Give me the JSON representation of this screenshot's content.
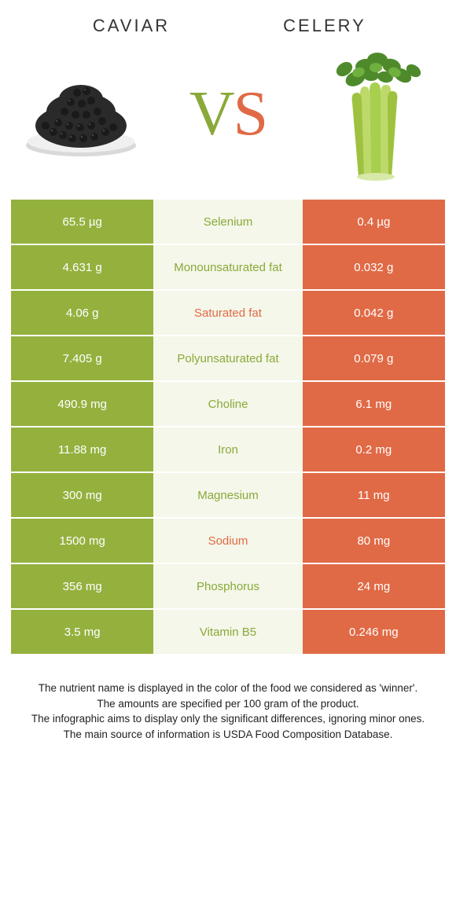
{
  "colors": {
    "left_bg": "#94b13e",
    "right_bg": "#e06a46",
    "mid_bg": "#f4f7e9",
    "left_text": "#8aa93a",
    "right_text": "#e06a46"
  },
  "foods": {
    "left_title": "CAVIAR",
    "right_title": "CELERY"
  },
  "vs": {
    "v": "V",
    "s": "S"
  },
  "rows": [
    {
      "left": "65.5 µg",
      "name": "Selenium",
      "right": "0.4 µg",
      "winner": "left"
    },
    {
      "left": "4.631 g",
      "name": "Monounsaturated fat",
      "right": "0.032 g",
      "winner": "left"
    },
    {
      "left": "4.06 g",
      "name": "Saturated fat",
      "right": "0.042 g",
      "winner": "right"
    },
    {
      "left": "7.405 g",
      "name": "Polyunsaturated fat",
      "right": "0.079 g",
      "winner": "left"
    },
    {
      "left": "490.9 mg",
      "name": "Choline",
      "right": "6.1 mg",
      "winner": "left"
    },
    {
      "left": "11.88 mg",
      "name": "Iron",
      "right": "0.2 mg",
      "winner": "left"
    },
    {
      "left": "300 mg",
      "name": "Magnesium",
      "right": "11 mg",
      "winner": "left"
    },
    {
      "left": "1500 mg",
      "name": "Sodium",
      "right": "80 mg",
      "winner": "right"
    },
    {
      "left": "356 mg",
      "name": "Phosphorus",
      "right": "24 mg",
      "winner": "left"
    },
    {
      "left": "3.5 mg",
      "name": "Vitamin B5",
      "right": "0.246 mg",
      "winner": "left"
    }
  ],
  "footer": {
    "line1": "The nutrient name is displayed in the color of the food we considered as 'winner'.",
    "line2": "The amounts are specified per 100 gram of the product.",
    "line3": "The infographic aims to display only the significant differences, ignoring minor ones.",
    "line4": "The main source of information is USDA Food Composition Database."
  }
}
